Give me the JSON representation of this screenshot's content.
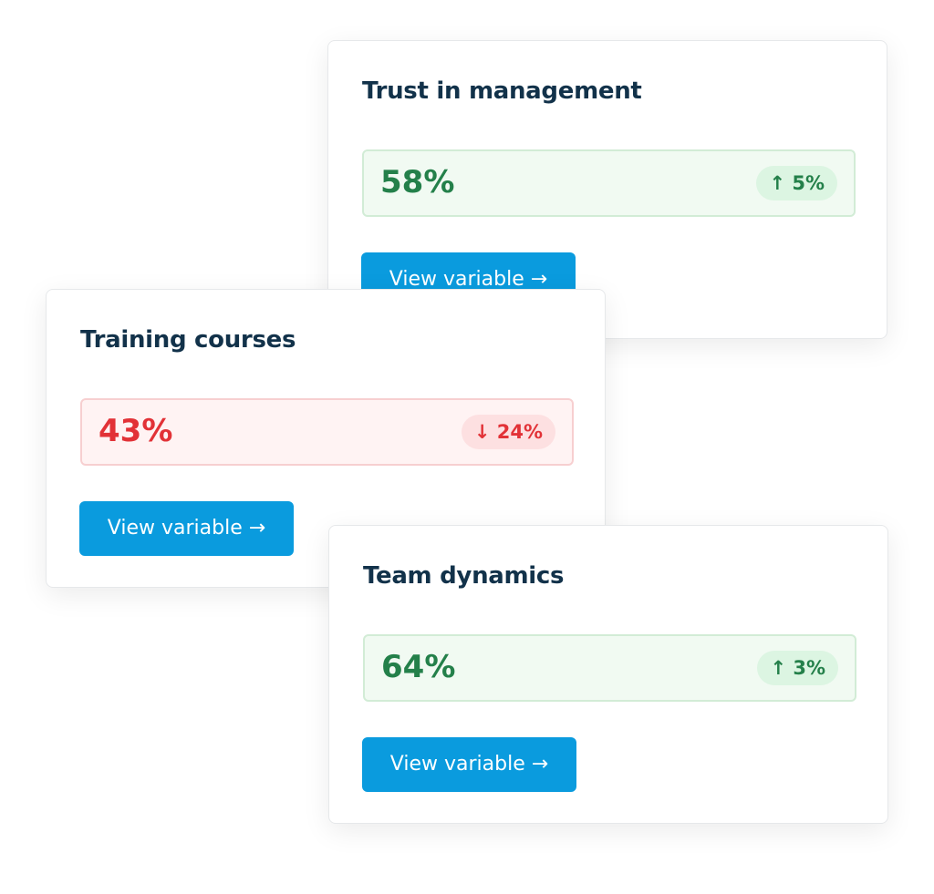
{
  "cards": [
    {
      "title": "Trust in management",
      "value": "58%",
      "change": "↑ 5%",
      "button": "View variable →",
      "color": "green"
    },
    {
      "title": "Training courses",
      "value": "43%",
      "change": "↓ 24%",
      "button": "View variable →",
      "color": "red"
    },
    {
      "title": "Team dynamics",
      "value": "64%",
      "change": "↑ 3%",
      "button": "View variable →",
      "color": "green"
    }
  ]
}
